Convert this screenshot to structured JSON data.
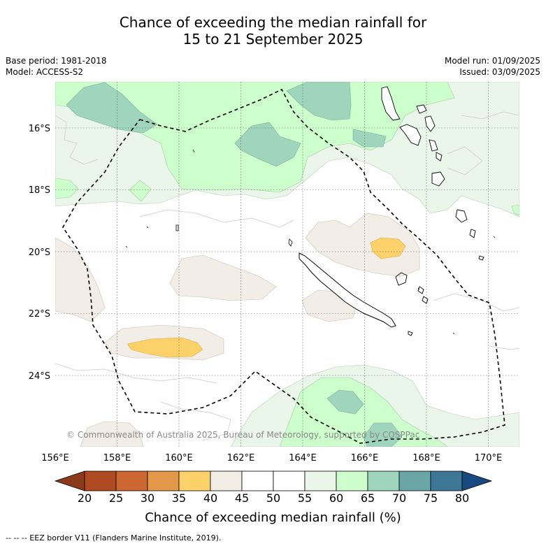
{
  "title": {
    "line1": "Chance of exceeding the median rainfall for",
    "line2": "15 to 21 September 2025"
  },
  "meta": {
    "base_period": "Base period: 1981-2018",
    "model": "Model: ACCESS-S2",
    "model_run": "Model run: 01/09/2025",
    "issued": "Issued: 03/09/2025"
  },
  "map": {
    "lon_range": [
      156,
      171
    ],
    "lat_range": [
      -26,
      -14.5
    ],
    "lon_ticks": [
      "156°E",
      "158°E",
      "160°E",
      "162°E",
      "164°E",
      "166°E",
      "168°E",
      "170°E"
    ],
    "lat_ticks": [
      "16°S",
      "18°S",
      "20°S",
      "22°S",
      "24°S"
    ],
    "copyright": "© Commonwealth of Australia 2025, Bureau of Meteorology, supported by COSPPac"
  },
  "colorbar": {
    "title": "Chance of exceeding median rainfall (%)",
    "ticks": [
      "20",
      "25",
      "30",
      "35",
      "40",
      "45",
      "50",
      "55",
      "60",
      "65",
      "70",
      "75",
      "80"
    ],
    "colors": {
      "below_20": "#8b3a1c",
      "20_25": "#b04a22",
      "25_30": "#cc6633",
      "30_35": "#e39848",
      "35_40": "#fdd16a",
      "40_45": "#f2ede6",
      "45_50": "#ffffff",
      "50_55": "#ffffff",
      "55_60": "#eaf6ea",
      "60_65": "#ccffcc",
      "65_70": "#9fd4bd",
      "70_75": "#6aa6a6",
      "75_80": "#3e7796",
      "above_80": "#174a80"
    }
  },
  "footnote": "--  --  -- EEZ border V11 (Flanders Marine Institute, 2019)."
}
